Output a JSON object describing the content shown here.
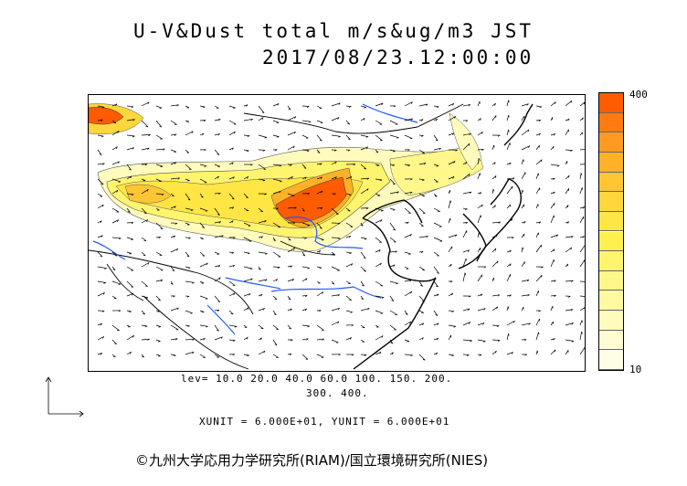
{
  "title": {
    "line1": "U-V&Dust total m/s&ug/m3 JST",
    "line2": "2017/08/23.12:00:00"
  },
  "legend": {
    "max_label": "400",
    "min_label": "10",
    "colors": [
      "#ff5b00",
      "#ff7a10",
      "#ff9a20",
      "#ffb128",
      "#ffc634",
      "#ffd63c",
      "#ffe644",
      "#fff050",
      "#fff46e",
      "#fff78a",
      "#fff9a4",
      "#fffbbd",
      "#fffcd4",
      "#fffde6"
    ]
  },
  "levels": {
    "line1": "lev= 10.0 20.0 40.0 60.0 100. 150. 200.",
    "line2": "300. 400."
  },
  "units_text": "XUNIT = 6.000E+01, YUNIT = 6.000E+01",
  "credit": "©九州大学応用力学研究所(RIAM)/国立環境研究所(NIES)"
}
